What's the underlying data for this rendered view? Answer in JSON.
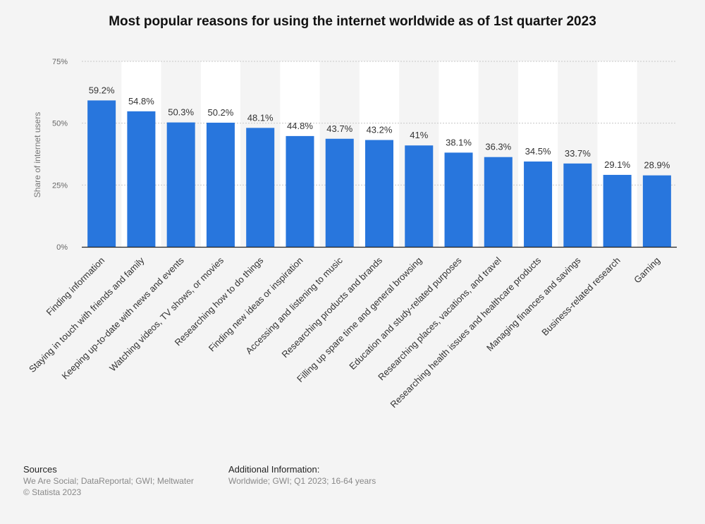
{
  "title": "Most popular reasons for using the internet worldwide as of 1st quarter 2023",
  "colors": {
    "bar": "#2876dd",
    "grid": "#c8c8c8",
    "axis": "#222222",
    "bg_band": "#ffffff"
  },
  "chart_data": {
    "type": "bar",
    "title": "Most popular reasons for using the internet worldwide as of 1st quarter 2023",
    "ylabel": "Share of internet users",
    "xlabel": "",
    "ylim": [
      0,
      75
    ],
    "yticks": [
      0,
      25,
      50,
      75
    ],
    "ytick_labels": [
      "0%",
      "25%",
      "50%",
      "75%"
    ],
    "grid": true,
    "categories": [
      "Finding information",
      "Staying in touch with friends and family",
      "Keeping up-to-date with news and events",
      "Watching videos, TV shows, or movies",
      "Researching how to do things",
      "Finding new ideas or inspiration",
      "Accessing and listening to music",
      "Researching products and brands",
      "Filling up spare time and general browsing",
      "Education and study-related purposes",
      "Researching places, vacations, and travel",
      "Researching health issues and healthcare products",
      "Managing finances and savings",
      "Business-related research",
      "Gaming"
    ],
    "values": [
      59.2,
      54.8,
      50.3,
      50.2,
      48.1,
      44.8,
      43.7,
      43.2,
      41,
      38.1,
      36.3,
      34.5,
      33.7,
      29.1,
      28.9
    ],
    "value_labels": [
      "59.2%",
      "54.8%",
      "50.3%",
      "50.2%",
      "48.1%",
      "44.8%",
      "43.7%",
      "43.2%",
      "41%",
      "38.1%",
      "36.3%",
      "34.5%",
      "33.7%",
      "29.1%",
      "28.9%"
    ]
  },
  "footer": {
    "sources_heading": "Sources",
    "sources_text": "We Are Social; DataReportal; GWI; Meltwater",
    "copyright": "© Statista 2023",
    "additional_heading": "Additional Information:",
    "additional_text": "Worldwide; GWI; Q1 2023; 16-64 years"
  }
}
